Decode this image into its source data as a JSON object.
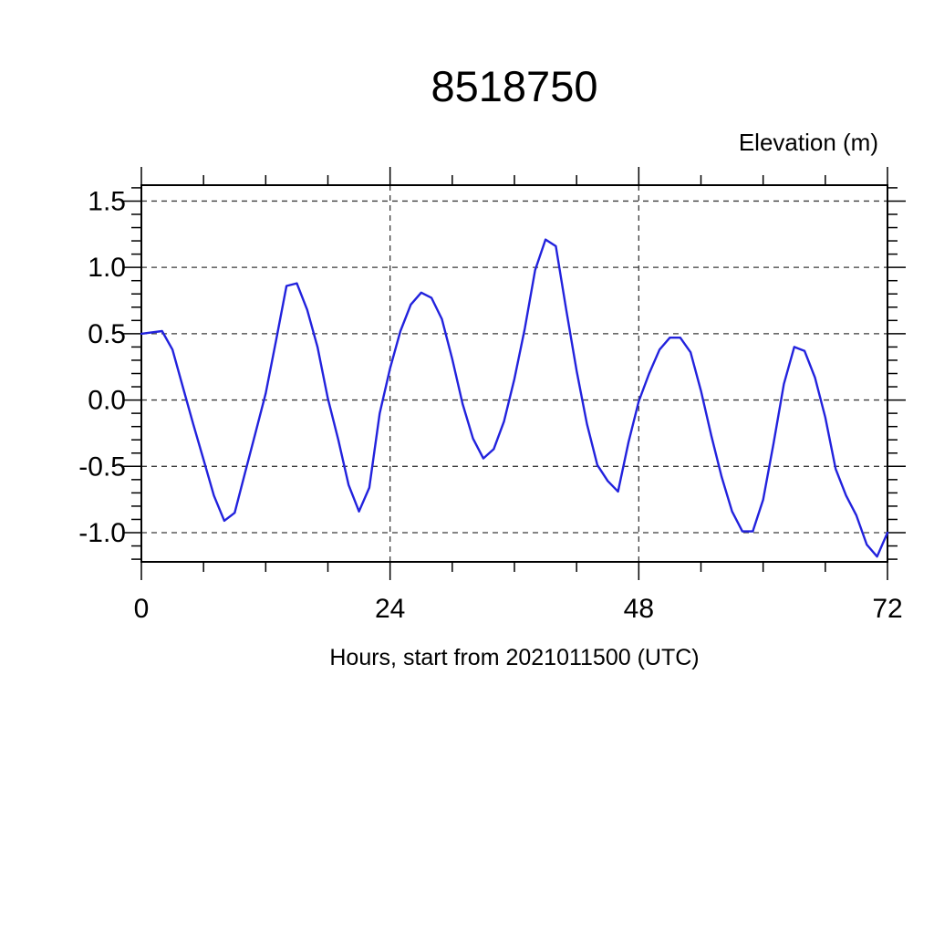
{
  "chart_data": {
    "type": "line",
    "title": "8518750",
    "ylabel": "Elevation (m)",
    "xlabel": "Hours, start from 2021011500 (UTC)",
    "xlim": [
      0,
      72
    ],
    "ylim": [
      -1.22,
      1.62
    ],
    "x_major_ticks": [
      0,
      24,
      48,
      72
    ],
    "x_tick_labels": [
      "0",
      "24",
      "48",
      "72"
    ],
    "x_minor_step": 6,
    "y_major_ticks": [
      -1.0,
      -0.5,
      0.0,
      0.5,
      1.0,
      1.5
    ],
    "y_tick_labels": [
      "-1.0",
      "-0.5",
      "0.0",
      "0.5",
      "1.0",
      "1.5"
    ],
    "y_minor_step": 0.1,
    "grid": "dashed at major ticks",
    "legend_position": "none",
    "frame_color": "#000000",
    "grid_color": "#3a3a3a",
    "line_color": "#2222dd",
    "series": [
      {
        "name": "elevation",
        "x": [
          0,
          1,
          2,
          3,
          4,
          5,
          6,
          7,
          8,
          9,
          10,
          11,
          12,
          13,
          14,
          15,
          16,
          17,
          18,
          19,
          20,
          21,
          22,
          23,
          24,
          25,
          26,
          27,
          28,
          29,
          30,
          31,
          32,
          33,
          34,
          35,
          36,
          37,
          38,
          39,
          40,
          41,
          42,
          43,
          44,
          45,
          46,
          47,
          48,
          49,
          50,
          51,
          52,
          53,
          54,
          55,
          56,
          57,
          58,
          59,
          60,
          61,
          62,
          63,
          64,
          65,
          66,
          67,
          68,
          69,
          70,
          71,
          72
        ],
        "y": [
          0.5,
          0.51,
          0.52,
          0.38,
          0.1,
          -0.18,
          -0.45,
          -0.72,
          -0.91,
          -0.85,
          -0.55,
          -0.25,
          0.05,
          0.45,
          0.86,
          0.88,
          0.68,
          0.4,
          0.01,
          -0.3,
          -0.64,
          -0.84,
          -0.66,
          -0.1,
          0.24,
          0.52,
          0.72,
          0.81,
          0.77,
          0.61,
          0.31,
          -0.03,
          -0.29,
          -0.44,
          -0.37,
          -0.16,
          0.16,
          0.54,
          0.98,
          1.21,
          1.16,
          0.68,
          0.22,
          -0.18,
          -0.49,
          -0.61,
          -0.69,
          -0.32,
          -0.01,
          0.2,
          0.38,
          0.47,
          0.47,
          0.36,
          0.07,
          -0.27,
          -0.58,
          -0.84,
          -0.99,
          -0.99,
          -0.75,
          -0.33,
          0.12,
          0.4,
          0.37,
          0.17,
          -0.13,
          -0.52,
          -0.72,
          -0.87,
          -1.09,
          -1.18,
          -1.0
        ]
      }
    ]
  }
}
